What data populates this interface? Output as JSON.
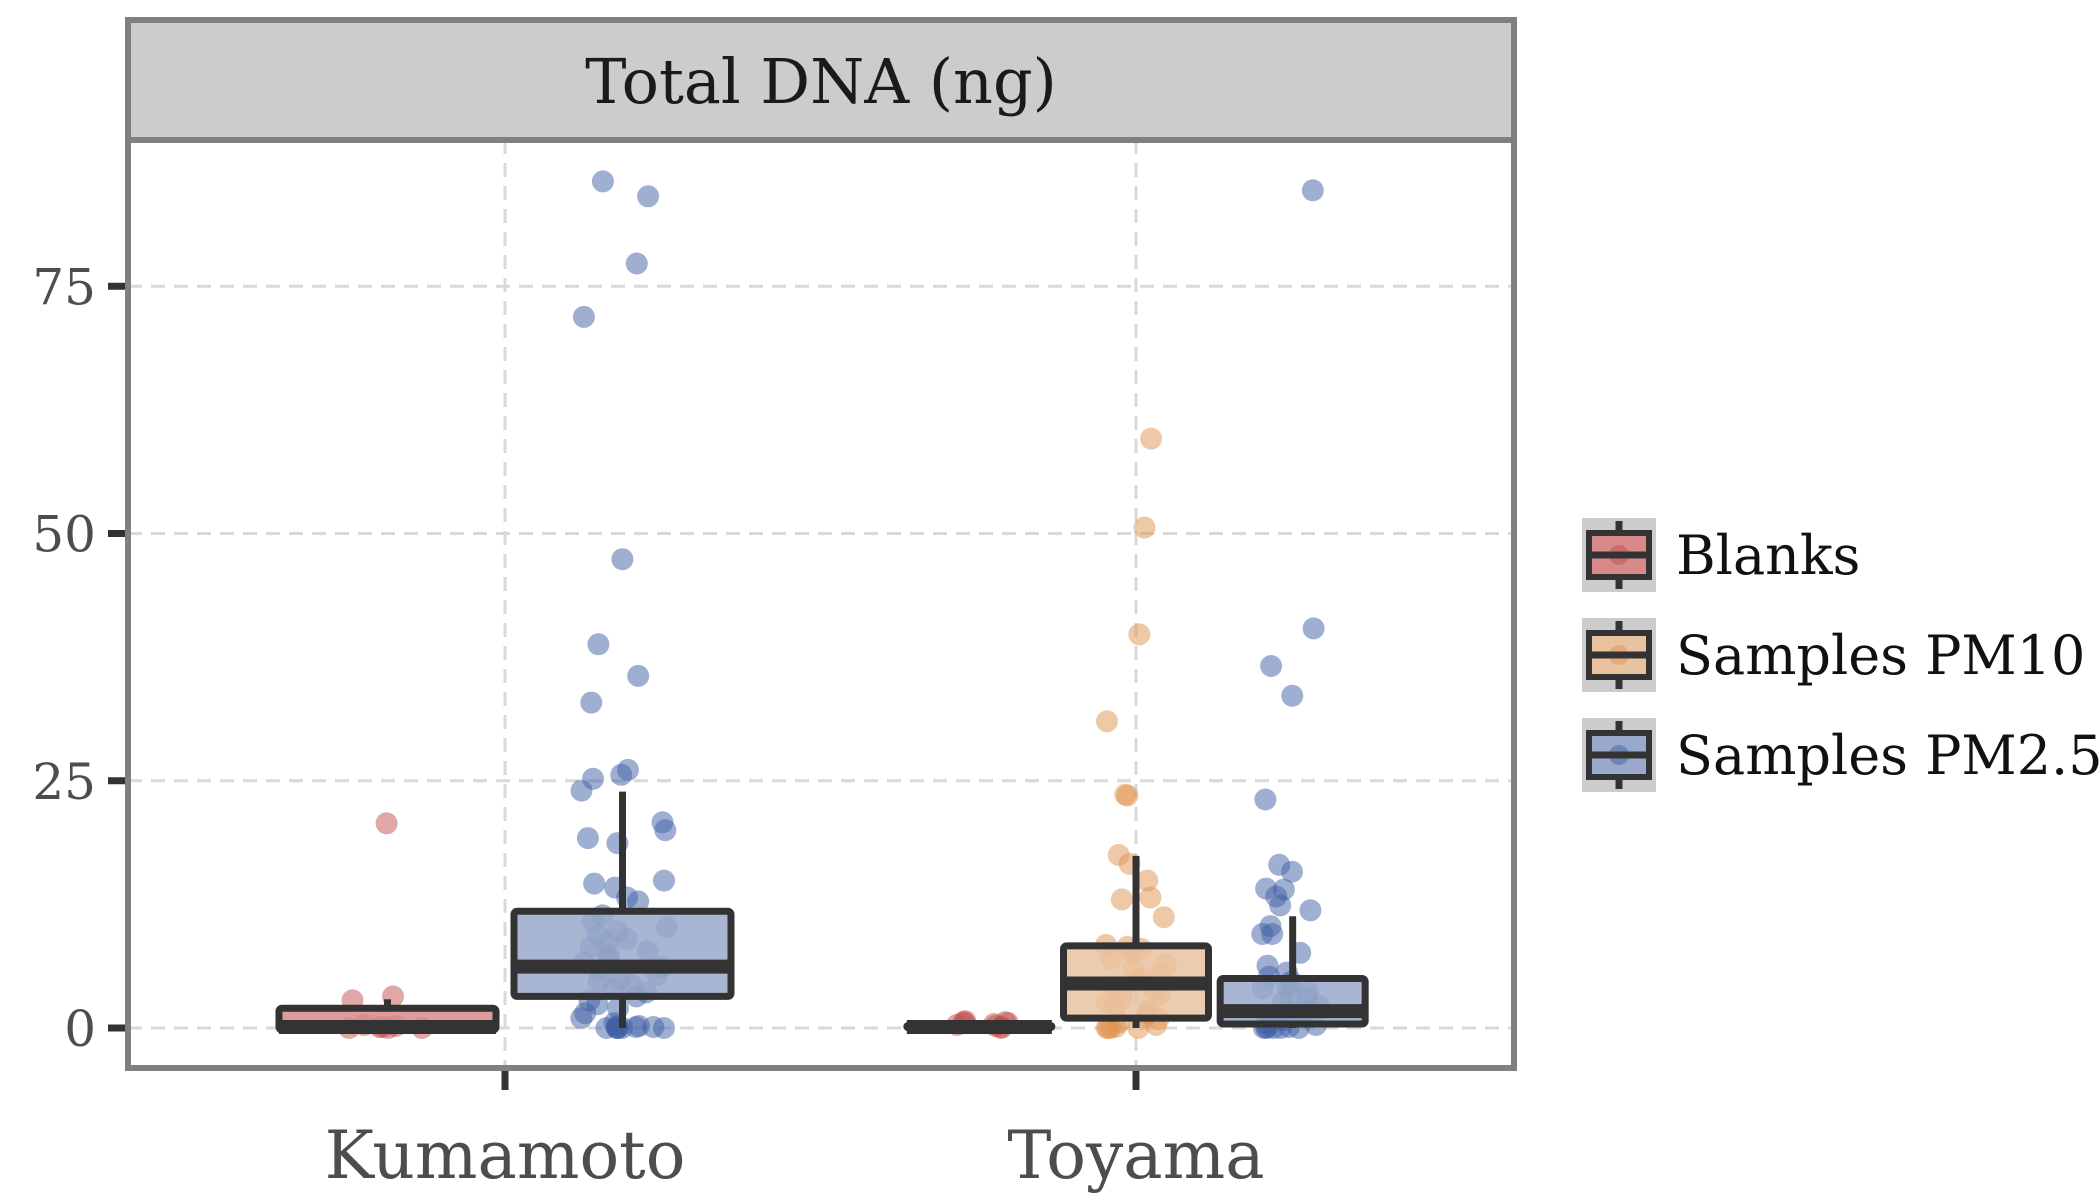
{
  "chart_data": {
    "type": "boxplot",
    "title": "Total DNA (ng)",
    "xlabel": "",
    "ylabel": "",
    "ylim": [
      -4,
      89
    ],
    "yticks": [
      0,
      25,
      50,
      75
    ],
    "ytick_labels": [
      "0",
      "25",
      "50",
      "75"
    ],
    "categories": [
      "Kumamoto",
      "Toyama"
    ],
    "grid": true,
    "legend_position": "right",
    "series": [
      {
        "name": "Blanks",
        "color": "#d88a8a",
        "point_color": "#c0504d"
      },
      {
        "name": "Samples PM10",
        "color": "#e9c3a0",
        "point_color": "#e0934f"
      },
      {
        "name": "Samples PM2.5",
        "color": "#9aa9cb",
        "point_color": "#3f5fa3"
      }
    ],
    "groups": [
      {
        "category": "Kumamoto",
        "series": "Blanks",
        "box": {
          "q1": -0.2,
          "median": 0.1,
          "q3": 2.0,
          "whisker_low": 0,
          "whisker_high": 2.9
        },
        "points": [
          20.7,
          3.2,
          2.8,
          0.3,
          0.1,
          0.0,
          0.0,
          0.0,
          0.2,
          0.1
        ]
      },
      {
        "category": "Kumamoto",
        "series": "Samples PM2.5",
        "box": {
          "q1": 3.2,
          "median": 6.2,
          "q3": 11.8,
          "whisker_low": 0,
          "whisker_high": 23.9
        },
        "points": [
          85.6,
          84.1,
          77.3,
          71.9,
          47.4,
          38.8,
          35.6,
          32.9,
          26.1,
          25.6,
          25.2,
          24.0,
          20.8,
          20.0,
          19.2,
          18.7,
          14.9,
          14.6,
          14.2,
          13.2,
          12.8,
          11.4,
          10.8,
          10.2,
          9.8,
          9.4,
          9.0,
          8.6,
          8.2,
          7.8,
          7.4,
          7.0,
          6.6,
          6.2,
          5.8,
          5.4,
          5.0,
          4.7,
          4.3,
          4.0,
          3.6,
          3.2,
          2.8,
          2.4,
          2.0,
          1.5,
          1.0,
          0.5,
          0.2,
          0.1,
          0.0,
          0.0,
          0.0,
          0.0,
          0.0,
          0.1,
          0.0,
          0.2
        ]
      },
      {
        "category": "Toyama",
        "series": "Blanks",
        "box": {
          "q1": 0.0,
          "median": 0.1,
          "q3": 0.3,
          "whisker_low": 0,
          "whisker_high": 0.6
        },
        "points": [
          0.5,
          0.6,
          0.4,
          0.3,
          0.7,
          0.2,
          0.1,
          0.5,
          0.6,
          0.0
        ]
      },
      {
        "category": "Toyama",
        "series": "Samples PM10",
        "box": {
          "q1": 1.0,
          "median": 4.5,
          "q3": 8.3,
          "whisker_low": 0,
          "whisker_high": 17.4
        },
        "points": [
          59.6,
          50.6,
          39.8,
          31.0,
          23.6,
          23.5,
          17.5,
          16.6,
          14.9,
          13.2,
          13.0,
          11.2,
          8.4,
          8.2,
          8.0,
          7.6,
          7.0,
          6.4,
          6.0,
          5.5,
          5.0,
          4.6,
          4.2,
          3.8,
          3.4,
          3.0,
          2.6,
          2.2,
          1.8,
          1.5,
          1.2,
          0.9,
          0.6,
          0.3,
          0.1,
          0.0,
          0.0,
          0.0,
          0.0
        ]
      },
      {
        "category": "Toyama",
        "series": "Samples PM2.5",
        "box": {
          "q1": 0.4,
          "median": 1.7,
          "q3": 5.0,
          "whisker_low": 0,
          "whisker_high": 11.3
        },
        "points": [
          84.7,
          40.4,
          36.6,
          33.6,
          23.1,
          16.5,
          15.8,
          14.1,
          14.0,
          13.3,
          12.4,
          11.9,
          10.3,
          9.5,
          9.5,
          7.6,
          6.3,
          5.6,
          5.2,
          4.7,
          4.3,
          4.0,
          3.6,
          3.3,
          3.0,
          2.6,
          2.2,
          1.9,
          1.5,
          1.1,
          0.8,
          0.5,
          0.3,
          0.1,
          0.0,
          0.0,
          0.0,
          0.0,
          0.0,
          0.1
        ]
      }
    ]
  }
}
